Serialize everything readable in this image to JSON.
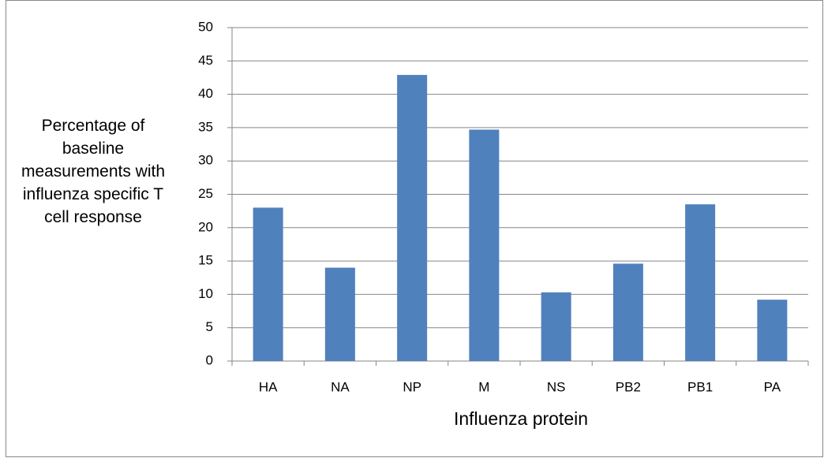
{
  "chart_data": {
    "type": "bar",
    "ylabel": "Percentage of baseline measurements with influenza specific T cell response",
    "xlabel": "Influenza protein",
    "categories": [
      "HA",
      "NA",
      "NP",
      "M",
      "NS",
      "PB2",
      "PB1",
      "PA"
    ],
    "values": [
      23,
      14,
      42.9,
      34.7,
      10.3,
      14.6,
      23.5,
      9.2
    ],
    "color": "#4f81bd",
    "ylim": [
      0,
      50
    ],
    "yticks": [
      0,
      5,
      10,
      15,
      20,
      25,
      30,
      35,
      40,
      45,
      50
    ],
    "grid": true
  }
}
